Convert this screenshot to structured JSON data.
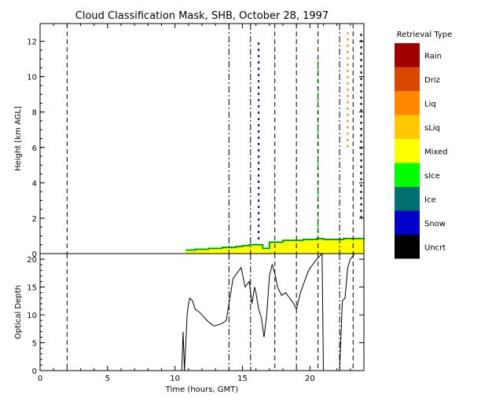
{
  "chart_data": [
    {
      "type": "heatmap",
      "title": "Cloud Classification Mask, SHB, October 28, 1997",
      "ylabel": "Height [km AGL]",
      "xlim": [
        0,
        24
      ],
      "ylim": [
        0,
        13
      ],
      "yticks": [
        0,
        2,
        4,
        6,
        8,
        10,
        12
      ],
      "x": [
        10.8,
        11.5,
        12.5,
        13.5,
        14.5,
        15.0,
        15.5,
        16.0,
        16.5,
        17.0,
        17.5,
        18.0,
        18.5,
        19.0,
        19.5,
        20.0,
        20.5,
        21.0,
        22.0,
        22.5,
        23.0,
        23.5,
        24.0
      ],
      "cloud_top_km": [
        0.2,
        0.25,
        0.3,
        0.35,
        0.4,
        0.45,
        0.5,
        0.5,
        0.3,
        0.65,
        0.65,
        0.75,
        0.75,
        0.75,
        0.8,
        0.8,
        0.85,
        0.8,
        0.8,
        0.85,
        0.85,
        0.85,
        0.8
      ],
      "cloud_base_class": "Mixed",
      "cloud_edge_class": "sIce",
      "isolated_columns": [
        {
          "x": 16.2,
          "from_km": 0.8,
          "to_km": 12.0,
          "class": "Snow"
        },
        {
          "x": 20.6,
          "from_km": 0.8,
          "to_km": 11.0,
          "class": "sIce"
        },
        {
          "x": 22.8,
          "from_km": 6.0,
          "to_km": 12.5,
          "class": "Liq"
        },
        {
          "x": 23.8,
          "from_km": 2.0,
          "to_km": 12.5,
          "class": "Uncrt"
        }
      ],
      "dashed_lines_x": [
        2.0,
        14.0,
        15.6,
        17.4,
        19.0,
        20.6,
        22.2,
        23.2
      ],
      "dashdot_lines_x": [
        14.0,
        15.6,
        22.2
      ],
      "legend": {
        "title": "Retrieval Type",
        "placement": "right",
        "entries": [
          {
            "label": "Rain",
            "color": "#a00000"
          },
          {
            "label": "Driz",
            "color": "#d84800"
          },
          {
            "label": "Liq",
            "color": "#ff8800"
          },
          {
            "label": "sLiq",
            "color": "#ffc800"
          },
          {
            "label": "Mixed",
            "color": "#ffff00"
          },
          {
            "label": "sIce",
            "color": "#00ff00"
          },
          {
            "label": "Ice",
            "color": "#007070"
          },
          {
            "label": "Snow",
            "color": "#0000c8"
          },
          {
            "label": "Uncrt",
            "color": "#000000"
          }
        ]
      }
    },
    {
      "type": "line",
      "xlabel": "Time (hours, GMT)",
      "ylabel": "Optical Depth",
      "xlim": [
        0,
        24
      ],
      "ylim": [
        0,
        21
      ],
      "xticks": [
        0,
        5,
        10,
        15,
        20
      ],
      "yticks": [
        0,
        5,
        10,
        15,
        20
      ],
      "dashed_lines_x": [
        2.0,
        14.0,
        15.6,
        17.4,
        19.0,
        20.6,
        22.2,
        23.2
      ],
      "x": [
        10.5,
        10.6,
        10.7,
        10.9,
        11.0,
        11.1,
        11.3,
        11.5,
        11.8,
        12.0,
        12.3,
        12.6,
        12.9,
        13.2,
        13.5,
        13.8,
        14.0,
        14.3,
        14.6,
        14.9,
        15.2,
        15.5,
        15.7,
        15.9,
        16.0,
        16.2,
        16.4,
        16.6,
        16.8,
        17.0,
        17.2,
        17.4,
        17.6,
        17.9,
        18.2,
        18.5,
        18.8,
        19.0,
        19.3,
        19.6,
        19.9,
        20.2,
        20.5,
        20.7,
        20.9,
        21.0,
        22.2,
        22.4,
        22.6,
        22.8,
        23.0,
        23.3,
        23.6
      ],
      "values": [
        0,
        7,
        0,
        10,
        12,
        13,
        12.5,
        11,
        10.5,
        10,
        9.2,
        8.5,
        8.0,
        8.2,
        8.5,
        9.0,
        12.0,
        16.5,
        17.5,
        18.5,
        15.0,
        16.0,
        12.0,
        15.0,
        14.0,
        11.0,
        9.5,
        6.0,
        10.0,
        17.0,
        19.0,
        17.5,
        15.0,
        13.5,
        14.0,
        13.0,
        12.0,
        11.0,
        14.0,
        16.0,
        18.0,
        19.0,
        20.0,
        20.5,
        21.0,
        0,
        0,
        12.5,
        13.0,
        18.5,
        20.0,
        21.0,
        21.0
      ]
    }
  ]
}
